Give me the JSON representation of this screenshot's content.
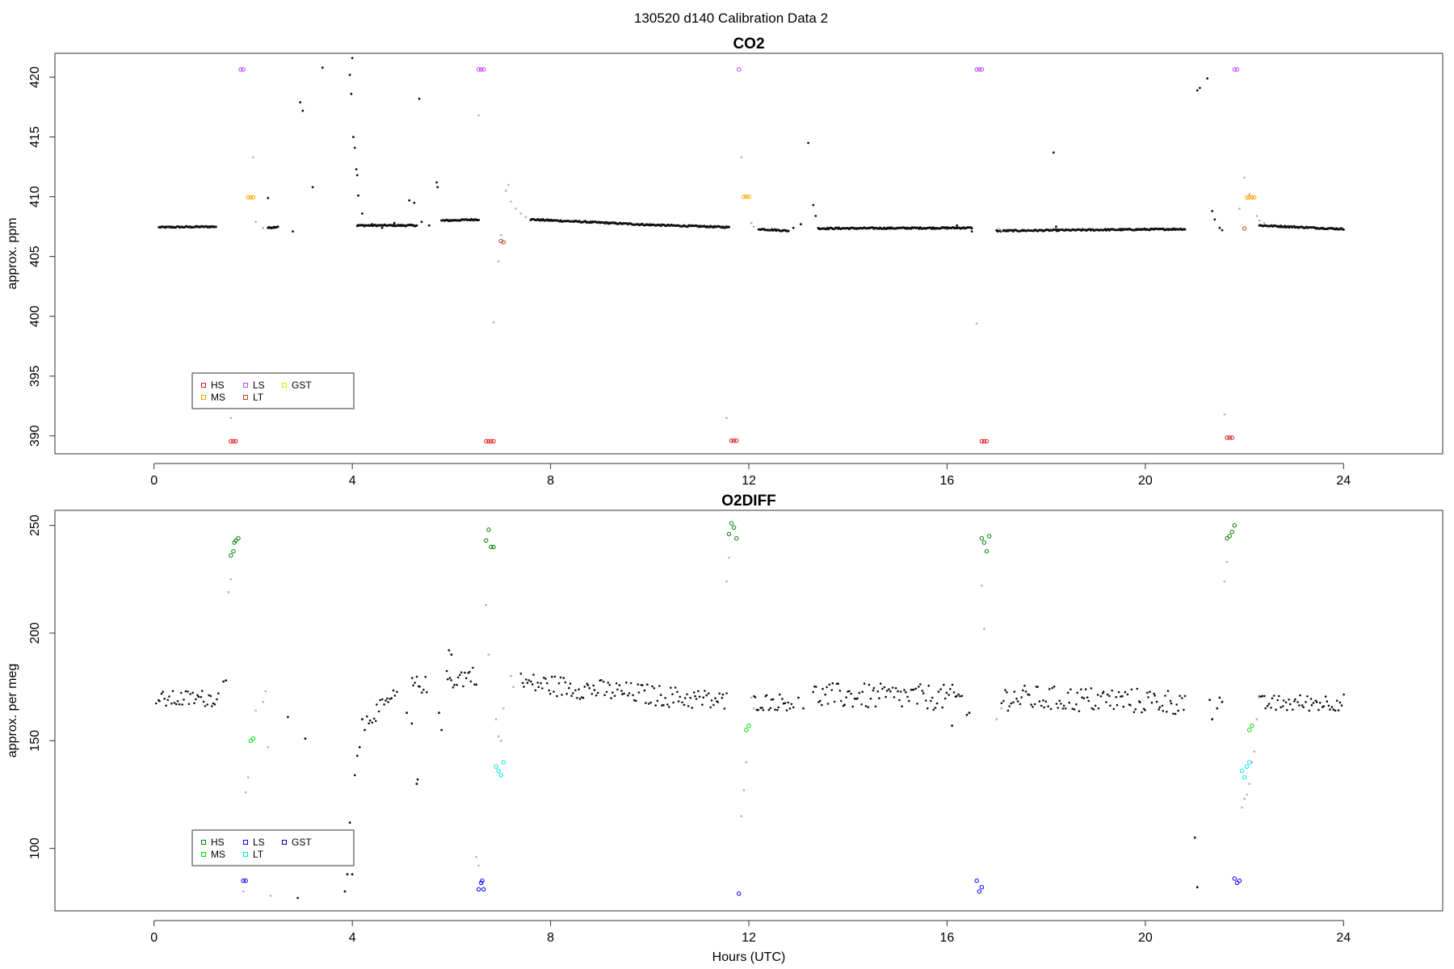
{
  "suptitle": "130520   d140   Calibration Data 2",
  "colors": {
    "data": "#111111",
    "flushing": "#b8b8b8",
    "axis": "#333333"
  },
  "chart_data": [
    {
      "type": "scatter",
      "title": "CO2",
      "xlabel": "",
      "ylabel": "approx. ppm",
      "xlim": [
        -2,
        26
      ],
      "ylim": [
        388.5,
        422
      ],
      "xticks": [
        0,
        4,
        8,
        12,
        16,
        20,
        24
      ],
      "yticks": [
        390,
        395,
        400,
        405,
        410,
        415,
        420
      ],
      "legend": {
        "placement": "bottom-left",
        "entries": [
          {
            "label": "HS",
            "color": "#e41a1c"
          },
          {
            "label": "MS",
            "color": "#ffa500"
          },
          {
            "label": "LS",
            "color": "#c040ff"
          },
          {
            "label": "LT",
            "color": "#c04020"
          },
          {
            "label": "GST",
            "color": "#e8e800"
          }
        ]
      },
      "baseline_segments": [
        {
          "x0": 0.1,
          "x1": 1.25,
          "y0": 407.45,
          "y1": 407.5
        },
        {
          "x0": 2.3,
          "x1": 2.5,
          "y0": 407.4,
          "y1": 407.5
        },
        {
          "x0": 4.1,
          "x1": 5.3,
          "y0": 407.6,
          "y1": 407.6
        },
        {
          "x0": 5.8,
          "x1": 6.55,
          "y0": 408.0,
          "y1": 408.1
        },
        {
          "x0": 7.6,
          "x1": 10.0,
          "y0": 408.1,
          "y1": 407.65
        },
        {
          "x0": 10.0,
          "x1": 11.6,
          "y0": 407.65,
          "y1": 407.45
        },
        {
          "x0": 12.2,
          "x1": 12.8,
          "y0": 407.3,
          "y1": 407.15
        },
        {
          "x0": 13.4,
          "x1": 16.5,
          "y0": 407.35,
          "y1": 407.4
        },
        {
          "x0": 17.0,
          "x1": 20.8,
          "y0": 407.15,
          "y1": 407.3
        },
        {
          "x0": 22.3,
          "x1": 24.0,
          "y0": 407.6,
          "y1": 407.3
        }
      ],
      "scatter_points": [
        [
          2.8,
          407.1
        ],
        [
          2.95,
          417.9
        ],
        [
          3.0,
          417.2
        ],
        [
          3.2,
          410.8
        ],
        [
          3.4,
          420.8
        ],
        [
          3.95,
          420.2
        ],
        [
          3.98,
          418.6
        ],
        [
          4.0,
          421.6
        ],
        [
          4.02,
          415.0
        ],
        [
          4.05,
          414.1
        ],
        [
          4.08,
          412.3
        ],
        [
          4.1,
          411.8
        ],
        [
          4.12,
          410.1
        ],
        [
          4.2,
          408.6
        ],
        [
          4.4,
          407.7
        ],
        [
          4.6,
          407.4
        ],
        [
          4.85,
          407.8
        ],
        [
          5.05,
          407.6
        ],
        [
          5.15,
          409.7
        ],
        [
          5.25,
          409.5
        ],
        [
          5.35,
          418.2
        ],
        [
          5.4,
          407.9
        ],
        [
          5.55,
          407.6
        ],
        [
          5.7,
          411.2
        ],
        [
          5.72,
          410.8
        ],
        [
          6.0,
          408.0
        ],
        [
          6.5,
          408.1
        ],
        [
          2.3,
          409.9
        ],
        [
          13.2,
          414.5
        ],
        [
          13.3,
          409.3
        ],
        [
          13.35,
          408.4
        ],
        [
          13.05,
          407.7
        ],
        [
          12.9,
          407.4
        ],
        [
          16.2,
          407.6
        ],
        [
          16.5,
          407.1
        ],
        [
          18.15,
          413.7
        ],
        [
          18.2,
          407.5
        ],
        [
          21.05,
          418.9
        ],
        [
          21.1,
          419.1
        ],
        [
          21.25,
          419.9
        ],
        [
          21.35,
          408.8
        ],
        [
          21.4,
          408.1
        ],
        [
          21.5,
          407.4
        ],
        [
          21.55,
          407.2
        ]
      ],
      "flush_points": [
        [
          1.55,
          391.5
        ],
        [
          2.0,
          413.3
        ],
        [
          2.05,
          407.9
        ],
        [
          2.2,
          407.4
        ],
        [
          6.55,
          416.8
        ],
        [
          6.85,
          399.5
        ],
        [
          6.95,
          404.6
        ],
        [
          7.0,
          406.8
        ],
        [
          7.1,
          410.5
        ],
        [
          7.15,
          411.0
        ],
        [
          7.2,
          409.6
        ],
        [
          7.3,
          409.0
        ],
        [
          7.4,
          408.6
        ],
        [
          7.5,
          408.3
        ],
        [
          11.55,
          391.5
        ],
        [
          11.85,
          413.3
        ],
        [
          12.05,
          407.8
        ],
        [
          12.1,
          407.5
        ],
        [
          16.6,
          399.4
        ],
        [
          17.05,
          407.3
        ],
        [
          17.1,
          407.2
        ],
        [
          21.6,
          391.8
        ],
        [
          21.9,
          409.0
        ],
        [
          22.0,
          411.6
        ],
        [
          22.1,
          410.2
        ],
        [
          22.25,
          408.4
        ],
        [
          22.3,
          408.0
        ],
        [
          22.4,
          407.8
        ]
      ],
      "cal_points": [
        {
          "label": "HS",
          "x": [
            1.55,
            1.6,
            1.65
          ],
          "y": [
            389.55,
            389.55,
            389.55
          ]
        },
        {
          "label": "HS",
          "x": [
            6.7,
            6.75,
            6.8,
            6.85
          ],
          "y": [
            389.55,
            389.55,
            389.55,
            389.55
          ]
        },
        {
          "label": "HS",
          "x": [
            11.65,
            11.7,
            11.75
          ],
          "y": [
            389.6,
            389.6,
            389.6
          ]
        },
        {
          "label": "HS",
          "x": [
            16.7,
            16.75,
            16.8
          ],
          "y": [
            389.55,
            389.55,
            389.55
          ]
        },
        {
          "label": "HS",
          "x": [
            21.65,
            21.7,
            21.75
          ],
          "y": [
            389.85,
            389.85,
            389.85
          ]
        },
        {
          "label": "LS",
          "x": [
            1.75,
            1.8
          ],
          "y": [
            420.65,
            420.65
          ]
        },
        {
          "label": "LS",
          "x": [
            6.55,
            6.6,
            6.65
          ],
          "y": [
            420.65,
            420.65,
            420.65
          ]
        },
        {
          "label": "LS",
          "x": [
            11.8
          ],
          "y": [
            420.65
          ]
        },
        {
          "label": "LS",
          "x": [
            16.6,
            16.65,
            16.7
          ],
          "y": [
            420.65,
            420.65,
            420.65
          ]
        },
        {
          "label": "LS",
          "x": [
            21.8,
            21.85
          ],
          "y": [
            420.65,
            420.65
          ]
        },
        {
          "label": "MS",
          "x": [
            1.9,
            1.95,
            2.0
          ],
          "y": [
            409.95,
            409.95,
            409.95
          ]
        },
        {
          "label": "MS",
          "x": [
            11.9,
            11.95,
            12.0
          ],
          "y": [
            410.0,
            410.0,
            410.0
          ]
        },
        {
          "label": "MS",
          "x": [
            22.05,
            22.1,
            22.15,
            22.2
          ],
          "y": [
            409.95,
            409.95,
            409.95,
            409.95
          ]
        },
        {
          "label": "LT",
          "x": [
            7.0,
            7.05
          ],
          "y": [
            406.3,
            406.2
          ]
        },
        {
          "label": "LT",
          "x": [
            22.0
          ],
          "y": [
            407.35
          ]
        }
      ]
    },
    {
      "type": "scatter",
      "title": "O2DIFF",
      "xlabel": "Hours (UTC)",
      "ylabel": "approx. per meg",
      "xlim": [
        -2,
        26
      ],
      "ylim": [
        71,
        257
      ],
      "xticks": [
        0,
        4,
        8,
        12,
        16,
        20,
        24
      ],
      "yticks": [
        100,
        150,
        200,
        250
      ],
      "legend": {
        "placement": "bottom-left",
        "entries": [
          {
            "label": "HS",
            "color": "#008000"
          },
          {
            "label": "MS",
            "color": "#00e000"
          },
          {
            "label": "LS",
            "color": "#0000ff"
          },
          {
            "label": "LT",
            "color": "#00e8e8"
          },
          {
            "label": "GST",
            "color": "#000090"
          }
        ]
      },
      "noise_segments": [
        {
          "x0": 0.05,
          "x1": 1.3,
          "y0": 169,
          "y1": 170,
          "amp": 4
        },
        {
          "x0": 4.3,
          "x1": 4.9,
          "y0": 160,
          "y1": 171,
          "amp": 4
        },
        {
          "x0": 5.2,
          "x1": 5.5,
          "y0": 176,
          "y1": 176,
          "amp": 4
        },
        {
          "x0": 5.9,
          "x1": 6.5,
          "y0": 178,
          "y1": 181,
          "amp": 5
        },
        {
          "x0": 7.4,
          "x1": 11.55,
          "y0": 177,
          "y1": 168,
          "amp": 5
        },
        {
          "x0": 12.1,
          "x1": 12.9,
          "y0": 168,
          "y1": 168,
          "amp": 4
        },
        {
          "x0": 13.3,
          "x1": 16.3,
          "y0": 171,
          "y1": 170,
          "amp": 6
        },
        {
          "x0": 17.1,
          "x1": 20.8,
          "y0": 170,
          "y1": 168,
          "amp": 6
        },
        {
          "x0": 22.3,
          "x1": 24.0,
          "y0": 167,
          "y1": 168,
          "amp": 4
        }
      ],
      "scatter_points": [
        [
          1.4,
          177.5
        ],
        [
          1.45,
          178
        ],
        [
          2.7,
          161
        ],
        [
          2.9,
          77
        ],
        [
          3.05,
          151
        ],
        [
          3.85,
          80
        ],
        [
          3.9,
          88
        ],
        [
          3.95,
          112
        ],
        [
          4.0,
          88
        ],
        [
          4.05,
          134
        ],
        [
          4.1,
          143
        ],
        [
          4.15,
          147
        ],
        [
          4.2,
          160
        ],
        [
          4.25,
          155
        ],
        [
          5.1,
          163
        ],
        [
          5.2,
          158
        ],
        [
          5.3,
          130
        ],
        [
          5.32,
          132
        ],
        [
          5.75,
          163
        ],
        [
          5.8,
          155
        ],
        [
          5.95,
          192
        ],
        [
          6.0,
          190
        ],
        [
          13.0,
          170
        ],
        [
          13.1,
          165
        ],
        [
          16.1,
          157
        ],
        [
          16.4,
          162
        ],
        [
          16.45,
          163
        ],
        [
          21.0,
          105
        ],
        [
          21.05,
          82
        ],
        [
          21.3,
          169
        ],
        [
          21.35,
          160
        ],
        [
          21.45,
          165
        ],
        [
          21.5,
          170
        ],
        [
          21.55,
          168
        ]
      ],
      "flush_points": [
        [
          1.5,
          219
        ],
        [
          1.55,
          225
        ],
        [
          1.8,
          80
        ],
        [
          1.85,
          126
        ],
        [
          1.9,
          133
        ],
        [
          2.05,
          164
        ],
        [
          2.2,
          168
        ],
        [
          2.25,
          173
        ],
        [
          2.3,
          147
        ],
        [
          2.35,
          78
        ],
        [
          6.5,
          96
        ],
        [
          6.55,
          92
        ],
        [
          6.7,
          213
        ],
        [
          6.75,
          190
        ],
        [
          6.9,
          160
        ],
        [
          6.95,
          152
        ],
        [
          7.0,
          150
        ],
        [
          7.05,
          165
        ],
        [
          7.2,
          180
        ],
        [
          7.25,
          175
        ],
        [
          11.55,
          224
        ],
        [
          11.6,
          235
        ],
        [
          11.85,
          115
        ],
        [
          11.9,
          127
        ],
        [
          11.95,
          140
        ],
        [
          12.05,
          170
        ],
        [
          12.1,
          165
        ],
        [
          16.7,
          222
        ],
        [
          16.75,
          202
        ],
        [
          17.0,
          160
        ],
        [
          17.1,
          165
        ],
        [
          21.6,
          224
        ],
        [
          21.65,
          233
        ],
        [
          21.95,
          119
        ],
        [
          22.0,
          123
        ],
        [
          22.05,
          125
        ],
        [
          22.1,
          130
        ],
        [
          22.15,
          140
        ],
        [
          22.2,
          145
        ],
        [
          22.25,
          160
        ],
        [
          22.3,
          170
        ]
      ],
      "cal_points": [
        {
          "label": "HS",
          "x": [
            1.55,
            1.6,
            1.62,
            1.65,
            1.7
          ],
          "y": [
            236,
            238,
            242,
            243,
            244
          ]
        },
        {
          "label": "HS",
          "x": [
            6.7,
            6.75,
            6.8,
            6.85
          ],
          "y": [
            243,
            248,
            240,
            240
          ]
        },
        {
          "label": "HS",
          "x": [
            11.6,
            11.65,
            11.7,
            11.75
          ],
          "y": [
            246,
            251,
            249,
            244
          ]
        },
        {
          "label": "HS",
          "x": [
            16.7,
            16.75,
            16.8,
            16.85
          ],
          "y": [
            244,
            242,
            238,
            245
          ]
        },
        {
          "label": "HS",
          "x": [
            21.65,
            21.7,
            21.75,
            21.8
          ],
          "y": [
            244,
            245,
            247,
            250
          ]
        },
        {
          "label": "MS",
          "x": [
            1.95,
            2.0
          ],
          "y": [
            150,
            151
          ]
        },
        {
          "label": "MS",
          "x": [
            11.95,
            12.0
          ],
          "y": [
            155,
            157
          ]
        },
        {
          "label": "MS",
          "x": [
            22.1,
            22.15
          ],
          "y": [
            155,
            157
          ]
        },
        {
          "label": "LS",
          "x": [
            1.8,
            1.85
          ],
          "y": [
            85,
            85
          ]
        },
        {
          "label": "LS",
          "x": [
            6.55,
            6.6,
            6.62,
            6.65
          ],
          "y": [
            81,
            84,
            85,
            81
          ]
        },
        {
          "label": "LS",
          "x": [
            11.8
          ],
          "y": [
            79
          ]
        },
        {
          "label": "LS",
          "x": [
            16.6,
            16.65,
            16.7
          ],
          "y": [
            85,
            80,
            82
          ]
        },
        {
          "label": "LS",
          "x": [
            21.8,
            21.85,
            21.9
          ],
          "y": [
            86,
            84,
            85
          ]
        },
        {
          "label": "LT",
          "x": [
            6.9,
            6.95,
            7.0,
            7.05
          ],
          "y": [
            138,
            136,
            134,
            140
          ]
        },
        {
          "label": "LT",
          "x": [
            21.95,
            22.0,
            22.05,
            22.1
          ],
          "y": [
            136,
            133,
            138,
            140
          ]
        }
      ]
    }
  ]
}
